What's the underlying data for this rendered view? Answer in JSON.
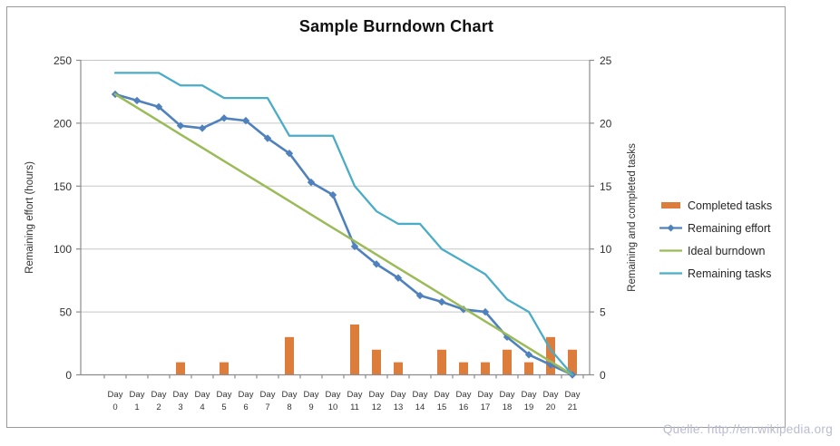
{
  "chart_data": {
    "type": "combo-bar-line",
    "title": "Sample Burndown Chart",
    "categories": [
      "Day 0",
      "Day 1",
      "Day 2",
      "Day 3",
      "Day 4",
      "Day 5",
      "Day 6",
      "Day 7",
      "Day 8",
      "Day 9",
      "Day 10",
      "Day 11",
      "Day 12",
      "Day 13",
      "Day 14",
      "Day 15",
      "Day 16",
      "Day 17",
      "Day 18",
      "Day 19",
      "Day 20",
      "Day 21"
    ],
    "left_axis": {
      "label": "Remaining effort (hours)",
      "min": 0,
      "max": 250,
      "ticks": [
        0,
        50,
        100,
        150,
        200,
        250
      ]
    },
    "right_axis": {
      "label": "Remaining and completed tasks",
      "min": 0,
      "max": 25,
      "ticks": [
        0,
        5,
        10,
        15,
        20,
        25
      ]
    },
    "grid": "horizontal",
    "legend_position": "right",
    "series": [
      {
        "name": "Completed tasks",
        "type": "bar",
        "axis": "right",
        "color": "#dd7d3c",
        "values": [
          0,
          0,
          0,
          1,
          0,
          1,
          0,
          0,
          3,
          0,
          0,
          4,
          2,
          1,
          0,
          2,
          1,
          1,
          2,
          1,
          3,
          2
        ]
      },
      {
        "name": "Remaining effort",
        "type": "line",
        "axis": "left",
        "color": "#4f81bd",
        "marker": "diamond",
        "values": [
          223,
          218,
          213,
          198,
          196,
          204,
          202,
          188,
          176,
          153,
          143,
          102,
          88,
          77,
          63,
          58,
          52,
          50,
          30,
          16,
          8,
          0
        ]
      },
      {
        "name": "Ideal burndown",
        "type": "line",
        "axis": "left",
        "color": "#9bbb59",
        "values": [
          223,
          212.4,
          201.8,
          191.1,
          180.5,
          169.9,
          159.3,
          148.7,
          138.1,
          127.4,
          116.8,
          106.2,
          95.6,
          84.9,
          74.3,
          63.7,
          53.1,
          42.5,
          31.9,
          21.2,
          10.6,
          0
        ]
      },
      {
        "name": "Remaining tasks",
        "type": "line",
        "axis": "right",
        "color": "#4bacc6",
        "values": [
          24,
          24,
          24,
          23,
          23,
          22,
          22,
          22,
          19,
          19,
          19,
          15,
          13,
          12,
          12,
          10,
          9,
          8,
          6,
          5,
          2,
          0
        ]
      }
    ]
  },
  "footer": {
    "source_text": "Quelle: http://en.wikipedia.org",
    "color": "#b9bbd1"
  },
  "style_colors": {
    "gridline": "#c6c6c6",
    "axis_line": "#8c8c8c",
    "tick_text": "#323232"
  }
}
